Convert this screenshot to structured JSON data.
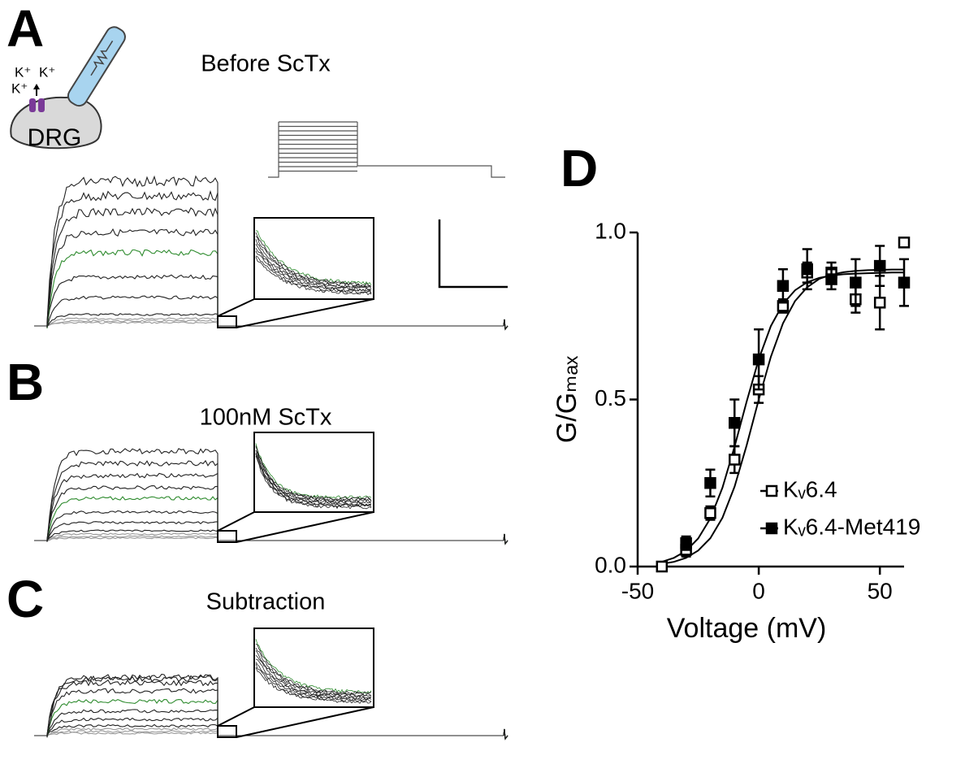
{
  "panels": {
    "A": {
      "label": "A",
      "title": "Before ScTx",
      "cell": "DRG",
      "ions": [
        "K⁺",
        "K⁺",
        "K⁺"
      ]
    },
    "B": {
      "label": "B",
      "title": "100nM ScTx"
    },
    "C": {
      "label": "C",
      "title": "Subtraction"
    }
  },
  "chart_data": {
    "type": "scatter",
    "label": "D",
    "xlabel": "Voltage (mV)",
    "ylabel": "G/Gₘₐₓ",
    "xlim": [
      -50,
      60
    ],
    "ylim": [
      0,
      1.0
    ],
    "xticks": [
      -50,
      0,
      50
    ],
    "yticks": [
      {
        "value": 0,
        "label": "0.0"
      },
      {
        "value": 0.5,
        "label": "0.5"
      },
      {
        "value": 1.0,
        "label": "1.0"
      }
    ],
    "fit_x": [
      -40,
      -35,
      -30,
      -25,
      -20,
      -15,
      -10,
      -5,
      0,
      5,
      10,
      15,
      20,
      25,
      30,
      35,
      40,
      45,
      50,
      55,
      60
    ],
    "series": [
      {
        "name": "Kᵥ6.4",
        "marker": "open",
        "color": "#000000",
        "x": [
          -40,
          -30,
          -20,
          -10,
          0,
          10,
          20,
          30,
          40,
          50,
          60
        ],
        "values": [
          0.0,
          0.05,
          0.16,
          0.32,
          0.53,
          0.78,
          0.88,
          0.88,
          0.8,
          0.79,
          0.97
        ],
        "errors": [
          0.01,
          0.02,
          0.02,
          0.04,
          0.04,
          0.02,
          0.03,
          0.03,
          0.04,
          0.08,
          0.01
        ],
        "fit": [
          0.008,
          0.014,
          0.026,
          0.048,
          0.085,
          0.146,
          0.239,
          0.363,
          0.5,
          0.628,
          0.728,
          0.795,
          0.836,
          0.861,
          0.874,
          0.881,
          0.885,
          0.887,
          0.888,
          0.889,
          0.889
        ]
      },
      {
        "name": "Kᵥ6.4-Met419",
        "marker": "filled",
        "color": "#000000",
        "x": [
          -30,
          -20,
          -10,
          0,
          10,
          20,
          30,
          40,
          50,
          60
        ],
        "values": [
          0.07,
          0.25,
          0.43,
          0.62,
          0.84,
          0.89,
          0.86,
          0.85,
          0.9,
          0.85
        ],
        "errors": [
          0.02,
          0.04,
          0.07,
          0.09,
          0.05,
          0.06,
          0.03,
          0.07,
          0.06,
          0.07
        ],
        "fit": [
          0.014,
          0.026,
          0.047,
          0.084,
          0.144,
          0.236,
          0.359,
          0.494,
          0.621,
          0.72,
          0.786,
          0.827,
          0.851,
          0.864,
          0.871,
          0.875,
          0.877,
          0.878,
          0.879,
          0.88,
          0.88
        ]
      }
    ]
  }
}
